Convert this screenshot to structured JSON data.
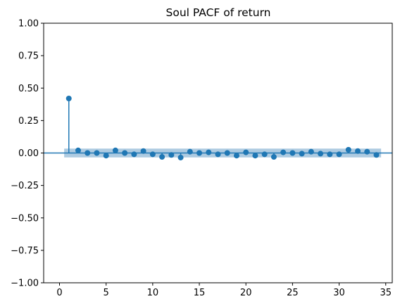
{
  "chart_data": {
    "type": "scatter",
    "title": "Soul PACF of return",
    "xlabel": "",
    "ylabel": "",
    "xlim": [
      -1.7,
      35.7
    ],
    "ylim": [
      -1.0,
      1.0
    ],
    "x_ticks": [
      0,
      5,
      10,
      15,
      20,
      25,
      30,
      35
    ],
    "x_tick_labels": [
      "0",
      "5",
      "10",
      "15",
      "20",
      "25",
      "30",
      "35"
    ],
    "y_ticks": [
      -1.0,
      -0.75,
      -0.5,
      -0.25,
      0.0,
      0.25,
      0.5,
      0.75,
      1.0
    ],
    "y_tick_labels": [
      "−1.00",
      "−0.75",
      "−0.50",
      "−0.25",
      "0.00",
      "0.25",
      "0.50",
      "0.75",
      "1.00"
    ],
    "grid": false,
    "confidence_band": 0.034,
    "colors": {
      "marker": "#1f77b4",
      "band": "#aecbe1"
    },
    "series": [
      {
        "lags": [
          1,
          2,
          3,
          4,
          5,
          6,
          7,
          8,
          9,
          10,
          11,
          12,
          13,
          14,
          15,
          16,
          17,
          18,
          19,
          20,
          21,
          22,
          23,
          24,
          25,
          26,
          27,
          28,
          29,
          30,
          31,
          32,
          33,
          34
        ],
        "values": [
          0.42,
          0.02,
          0.0,
          0.0,
          -0.02,
          0.02,
          0.0,
          -0.01,
          0.015,
          -0.01,
          -0.03,
          -0.015,
          -0.035,
          0.01,
          0.0,
          0.005,
          -0.01,
          0.0,
          -0.02,
          0.005,
          -0.02,
          -0.01,
          -0.03,
          0.005,
          0.0,
          -0.005,
          0.01,
          -0.005,
          -0.01,
          -0.01,
          0.025,
          0.015,
          0.01,
          -0.015
        ]
      }
    ]
  }
}
